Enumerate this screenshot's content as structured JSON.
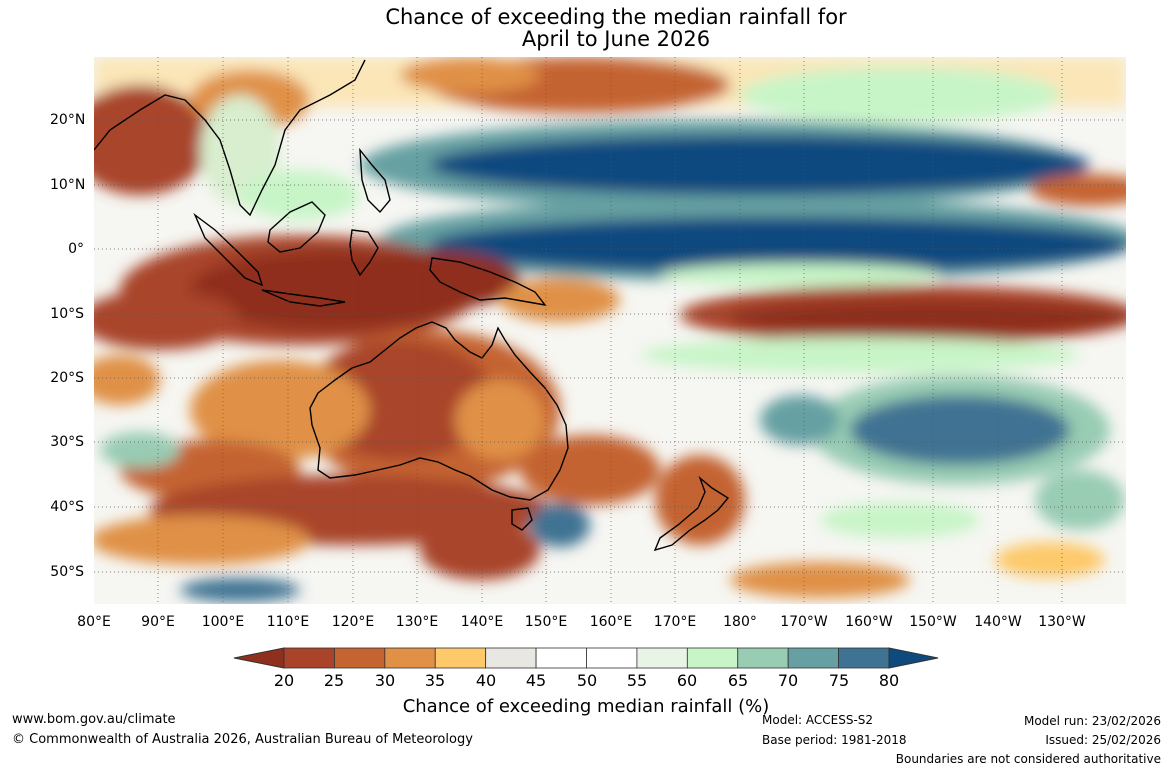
{
  "title": {
    "line1": "Chance of exceeding the median rainfall for",
    "line2": "April to June 2026"
  },
  "map": {
    "lat_labels": [
      "20°N",
      "10°N",
      "0°",
      "10°S",
      "20°S",
      "30°S",
      "40°S",
      "50°S"
    ],
    "lon_labels": [
      "80°E",
      "90°E",
      "100°E",
      "110°E",
      "120°E",
      "130°E",
      "140°E",
      "150°E",
      "160°E",
      "170°E",
      "180°",
      "170°W",
      "160°W",
      "150°W",
      "140°W",
      "130°W"
    ]
  },
  "colorbar": {
    "title": "Chance of exceeding median rainfall (%)",
    "ticks": [
      "20",
      "25",
      "30",
      "35",
      "40",
      "45",
      "50",
      "55",
      "60",
      "65",
      "70",
      "75",
      "80"
    ],
    "colors": [
      "#8f2f1e",
      "#a9442a",
      "#c46430",
      "#e09146",
      "#fdc96b",
      "#e9e7e2",
      "#ffffff",
      "#ffffff",
      "#e8f5e6",
      "#c8f5c8",
      "#98ccb3",
      "#66a0a2",
      "#3f7393",
      "#0f4a7f"
    ]
  },
  "footer": {
    "website": "www.bom.gov.au/climate",
    "copyright": "© Commonwealth of Australia 2026, Australian Bureau of Meteorology",
    "model": "Model: ACCESS-S2",
    "base_period": "Base period: 1981-2018",
    "model_run": "Model run: 23/02/2026",
    "issued": "Issued: 25/02/2026",
    "disclaimer": "Boundaries are not considered authoritative"
  }
}
